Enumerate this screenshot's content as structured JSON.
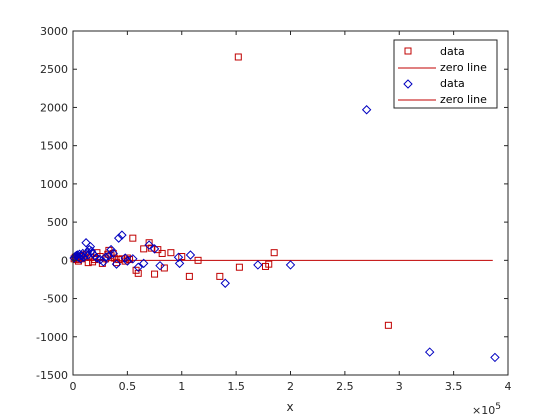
{
  "chart_data": {
    "type": "scatter",
    "title": "",
    "xlabel": "x",
    "ylabel": "",
    "x_exponent_label": "×10",
    "x_exponent_power": "5",
    "xlim": [
      0,
      400000
    ],
    "ylim": [
      -1500,
      3000
    ],
    "x_ticks": [
      0,
      50000,
      100000,
      150000,
      200000,
      250000,
      300000,
      350000,
      400000
    ],
    "x_tick_labels": [
      "0",
      "0.5",
      "1",
      "1.5",
      "2",
      "2.5",
      "3",
      "3.5",
      "4"
    ],
    "y_ticks": [
      -1500,
      -1000,
      -500,
      0,
      500,
      1000,
      1500,
      2000,
      2500,
      3000
    ],
    "y_tick_labels": [
      "-1500",
      "-1000",
      "-500",
      "0",
      "500",
      "1000",
      "1500",
      "2000",
      "2500",
      "3000"
    ],
    "grid": false,
    "legend_position": "top-right",
    "legend": [
      {
        "label": "data",
        "marker": "square",
        "color": "#c00000"
      },
      {
        "label": "zero line",
        "marker": "line",
        "color": "#c00000"
      },
      {
        "label": "data",
        "marker": "diamond",
        "color": "#0000c0"
      },
      {
        "label": "zero line",
        "marker": "line",
        "color": "#c00000"
      }
    ],
    "series": [
      {
        "marker": "square",
        "color": "#c00000",
        "points": [
          [
            1000,
            20
          ],
          [
            2000,
            40
          ],
          [
            3000,
            10
          ],
          [
            4000,
            30
          ],
          [
            5000,
            -10
          ],
          [
            6000,
            50
          ],
          [
            8000,
            20
          ],
          [
            10000,
            60
          ],
          [
            12000,
            80
          ],
          [
            14000,
            -30
          ],
          [
            16000,
            40
          ],
          [
            18000,
            -20
          ],
          [
            20000,
            10
          ],
          [
            22000,
            100
          ],
          [
            25000,
            50
          ],
          [
            27000,
            -40
          ],
          [
            30000,
            20
          ],
          [
            32000,
            80
          ],
          [
            33000,
            130
          ],
          [
            35000,
            60
          ],
          [
            37000,
            90
          ],
          [
            38000,
            30
          ],
          [
            40000,
            -30
          ],
          [
            42000,
            10
          ],
          [
            45000,
            20
          ],
          [
            48000,
            -10
          ],
          [
            50000,
            30
          ],
          [
            52000,
            10
          ],
          [
            55000,
            290
          ],
          [
            58000,
            -130
          ],
          [
            60000,
            -170
          ],
          [
            65000,
            150
          ],
          [
            70000,
            230
          ],
          [
            72000,
            160
          ],
          [
            75000,
            -180
          ],
          [
            78000,
            140
          ],
          [
            82000,
            90
          ],
          [
            84000,
            -100
          ],
          [
            90000,
            100
          ],
          [
            100000,
            50
          ],
          [
            107000,
            -210
          ],
          [
            115000,
            0
          ],
          [
            135000,
            -210
          ],
          [
            152000,
            2660
          ],
          [
            153000,
            -90
          ],
          [
            177000,
            -80
          ],
          [
            180000,
            -50
          ],
          [
            185000,
            100
          ],
          [
            290000,
            -850
          ]
        ]
      },
      {
        "marker": "diamond",
        "color": "#0000c0",
        "points": [
          [
            1000,
            30
          ],
          [
            2000,
            50
          ],
          [
            3000,
            60
          ],
          [
            4000,
            70
          ],
          [
            5000,
            40
          ],
          [
            6000,
            80
          ],
          [
            7000,
            20
          ],
          [
            8000,
            60
          ],
          [
            9000,
            90
          ],
          [
            10000,
            40
          ],
          [
            12000,
            230
          ],
          [
            13000,
            100
          ],
          [
            14000,
            70
          ],
          [
            15000,
            140
          ],
          [
            16000,
            180
          ],
          [
            17000,
            120
          ],
          [
            18000,
            90
          ],
          [
            20000,
            60
          ],
          [
            22000,
            30
          ],
          [
            25000,
            10
          ],
          [
            28000,
            -20
          ],
          [
            30000,
            40
          ],
          [
            33000,
            60
          ],
          [
            35000,
            140
          ],
          [
            37000,
            90
          ],
          [
            40000,
            -50
          ],
          [
            42000,
            290
          ],
          [
            45000,
            330
          ],
          [
            48000,
            30
          ],
          [
            50000,
            -10
          ],
          [
            55000,
            20
          ],
          [
            60000,
            -90
          ],
          [
            65000,
            -40
          ],
          [
            70000,
            200
          ],
          [
            75000,
            150
          ],
          [
            80000,
            -70
          ],
          [
            97000,
            40
          ],
          [
            98000,
            -40
          ],
          [
            108000,
            70
          ],
          [
            140000,
            -300
          ],
          [
            170000,
            -60
          ],
          [
            200000,
            -60
          ],
          [
            270000,
            1970
          ],
          [
            328000,
            -1200
          ],
          [
            388000,
            -1270
          ]
        ]
      }
    ],
    "zero_line": {
      "x": [
        0,
        386000
      ],
      "y": 0,
      "color": "#c00000"
    }
  }
}
